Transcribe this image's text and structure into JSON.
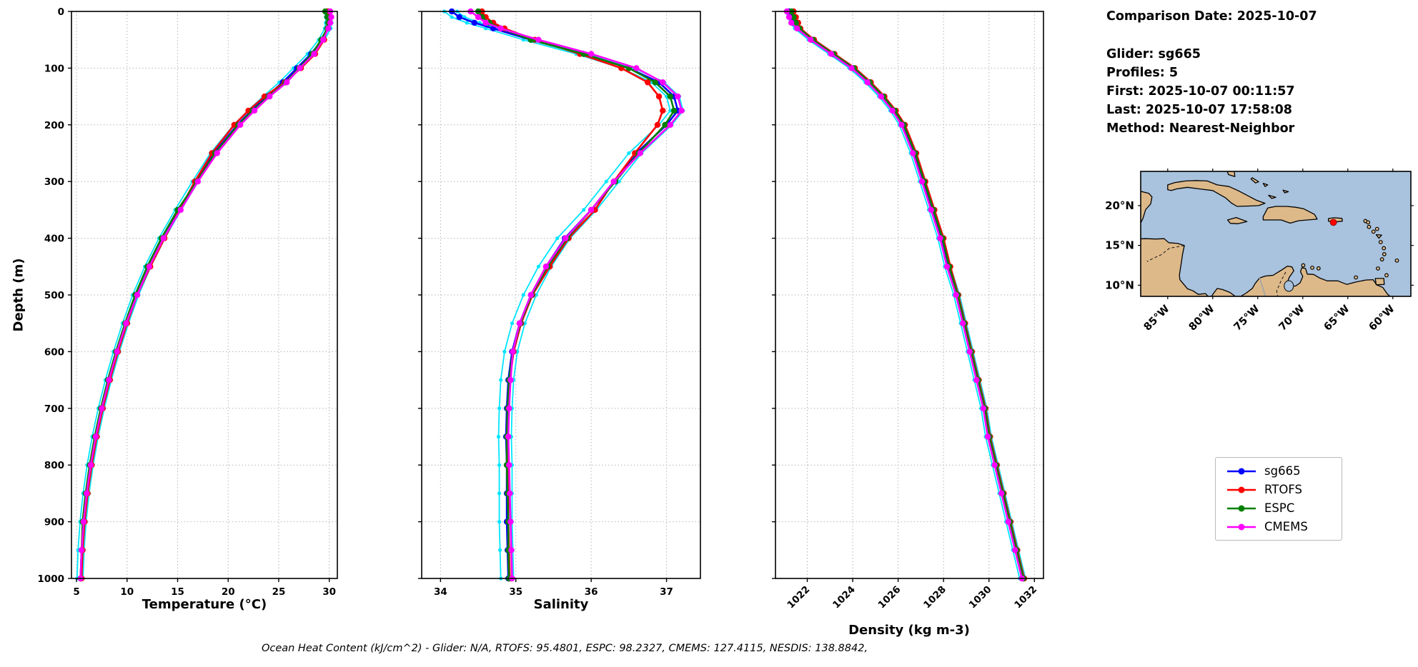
{
  "info_panel": {
    "comparison_date": "Comparison Date: 2025-10-07",
    "glider": "Glider: sg665",
    "profiles": "Profiles: 5",
    "first": "First: 2025-10-07 00:11:57",
    "last": "Last: 2025-10-07 17:58:08",
    "method": "Method: Nearest-Neighbor"
  },
  "footer": {
    "caption": "Ocean Heat Content (kJ/cm^2) - Glider: N/A,  RTOFS: 95.4801,  ESPC: 98.2327,  CMEMS: 127.4115,  NESDIS: 138.8842,"
  },
  "legend": {
    "entries": [
      {
        "label": "sg665",
        "color": "#0000ff"
      },
      {
        "label": "RTOFS",
        "color": "#ff0000"
      },
      {
        "label": "ESPC",
        "color": "#008000"
      },
      {
        "label": "CMEMS",
        "color": "#ff00ff"
      }
    ]
  },
  "style": {
    "individual_profile_color": "#00e5ff",
    "grid_color": "#b5b5b5",
    "axis_color": "#000000"
  },
  "map": {
    "extent": {
      "lon_min": -88,
      "lon_max": -58,
      "lat_min": 8.6,
      "lat_max": 24.3
    },
    "xticks": [
      -85,
      -80,
      -75,
      -70,
      -65,
      -60
    ],
    "xtick_labels": [
      "85°W",
      "80°W",
      "75°W",
      "70°W",
      "65°W",
      "60°W"
    ],
    "yticks": [
      20,
      15,
      10
    ],
    "ytick_labels": [
      "20°N",
      "15°N",
      "10°N"
    ],
    "ocean_color": "#a9c2dd",
    "land_color": "#ddb98a",
    "marker": {
      "lon": -66.6,
      "lat": 17.9,
      "color": "#ff0000"
    }
  },
  "chart_data": [
    {
      "type": "line",
      "name": "temperature-profile",
      "xlabel": "Temperature (°C)",
      "ylabel": "Depth (m)",
      "xlim": [
        4.5,
        30.8
      ],
      "ylim": [
        0,
        1000
      ],
      "xticks": [
        5,
        10,
        15,
        20,
        25,
        30
      ],
      "yticks": [
        0,
        100,
        200,
        300,
        400,
        500,
        600,
        700,
        800,
        900,
        1000
      ],
      "rotate_xtick_labels": false,
      "grid": "dotted",
      "profile_spread": 0.35,
      "depths": [
        0,
        10,
        20,
        30,
        50,
        75,
        100,
        125,
        150,
        175,
        200,
        250,
        300,
        350,
        400,
        450,
        500,
        550,
        600,
        650,
        700,
        750,
        800,
        850,
        900,
        950,
        1000
      ],
      "series": [
        {
          "name": "sg665",
          "color": "#0000ff",
          "values": [
            29.9,
            30.0,
            30.0,
            29.9,
            29.3,
            28.2,
            26.8,
            25.4,
            23.8,
            22.3,
            20.9,
            18.6,
            16.8,
            15.1,
            13.5,
            12.1,
            10.9,
            9.9,
            9.0,
            8.2,
            7.5,
            6.9,
            6.4,
            6.0,
            5.7,
            5.5,
            5.4
          ]
        },
        {
          "name": "RTOFS",
          "color": "#ff0000",
          "values": [
            29.8,
            29.9,
            29.9,
            29.8,
            29.5,
            28.6,
            27.2,
            25.6,
            23.6,
            22.0,
            20.6,
            18.4,
            16.7,
            15.2,
            13.7,
            12.3,
            11.0,
            10.0,
            9.1,
            8.3,
            7.6,
            7.0,
            6.5,
            6.1,
            5.8,
            5.6,
            5.5
          ]
        },
        {
          "name": "ESPC",
          "color": "#008000",
          "values": [
            29.6,
            29.8,
            29.9,
            29.8,
            29.2,
            28.3,
            27.0,
            25.7,
            24.0,
            22.4,
            21.0,
            18.7,
            16.9,
            15.0,
            13.4,
            12.0,
            10.8,
            9.8,
            8.9,
            8.1,
            7.4,
            6.8,
            6.3,
            5.9,
            5.6,
            5.5,
            5.4
          ]
        },
        {
          "name": "CMEMS",
          "color": "#ff00ff",
          "values": [
            30.1,
            30.2,
            30.1,
            29.9,
            29.4,
            28.5,
            27.1,
            25.8,
            24.1,
            22.6,
            21.2,
            18.9,
            17.0,
            15.3,
            13.6,
            12.2,
            11.0,
            9.9,
            9.0,
            8.2,
            7.5,
            6.9,
            6.4,
            6.0,
            5.7,
            5.5,
            5.4
          ]
        }
      ]
    },
    {
      "type": "line",
      "name": "salinity-profile",
      "xlabel": "Salinity",
      "ylabel": "",
      "xlim": [
        33.75,
        37.45
      ],
      "ylim": [
        0,
        1000
      ],
      "xticks": [
        34,
        35,
        36,
        37
      ],
      "yticks": [
        0,
        100,
        200,
        300,
        400,
        500,
        600,
        700,
        800,
        900,
        1000
      ],
      "rotate_xtick_labels": false,
      "grid": "dotted",
      "profile_spread": 0.1,
      "depths": [
        0,
        10,
        20,
        30,
        50,
        75,
        100,
        125,
        150,
        175,
        200,
        250,
        300,
        350,
        400,
        450,
        500,
        550,
        600,
        650,
        700,
        750,
        800,
        850,
        900,
        950,
        1000
      ],
      "series": [
        {
          "name": "sg665",
          "color": "#0000ff",
          "values": [
            34.15,
            34.25,
            34.45,
            34.7,
            35.2,
            35.9,
            36.5,
            36.9,
            37.1,
            37.15,
            37.0,
            36.6,
            36.3,
            36.0,
            35.65,
            35.4,
            35.2,
            35.05,
            34.95,
            34.9,
            34.88,
            34.87,
            34.88,
            34.88,
            34.88,
            34.89,
            34.9
          ]
        },
        {
          "name": "RTOFS",
          "color": "#ff0000",
          "values": [
            34.55,
            34.6,
            34.7,
            34.85,
            35.25,
            35.85,
            36.4,
            36.75,
            36.9,
            36.95,
            36.88,
            36.58,
            36.3,
            36.05,
            35.7,
            35.45,
            35.22,
            35.07,
            34.97,
            34.92,
            34.9,
            34.89,
            34.89,
            34.9,
            34.9,
            34.91,
            34.92
          ]
        },
        {
          "name": "ESPC",
          "color": "#008000",
          "values": [
            34.5,
            34.55,
            34.65,
            34.8,
            35.2,
            35.9,
            36.5,
            36.85,
            37.05,
            37.1,
            36.98,
            36.63,
            36.32,
            36.0,
            35.68,
            35.42,
            35.21,
            35.06,
            34.96,
            34.91,
            34.89,
            34.88,
            34.88,
            34.89,
            34.9,
            34.9,
            34.91
          ]
        },
        {
          "name": "CMEMS",
          "color": "#ff00ff",
          "values": [
            34.4,
            34.5,
            34.6,
            34.8,
            35.3,
            36.0,
            36.6,
            36.95,
            37.15,
            37.2,
            37.05,
            36.65,
            36.3,
            36.0,
            35.66,
            35.4,
            35.2,
            35.05,
            34.96,
            34.93,
            34.91,
            34.9,
            34.91,
            34.92,
            34.93,
            34.94,
            34.95
          ]
        }
      ]
    },
    {
      "type": "line",
      "name": "density-profile",
      "xlabel": "Density (kg m-3)",
      "ylabel": "",
      "xlim": [
        1020.6,
        1032.4
      ],
      "ylim": [
        0,
        1000
      ],
      "xticks": [
        1022,
        1024,
        1026,
        1028,
        1030,
        1032
      ],
      "yticks": [
        0,
        100,
        200,
        300,
        400,
        500,
        600,
        700,
        800,
        900,
        1000
      ],
      "rotate_xtick_labels": true,
      "grid": "dotted",
      "profile_spread": 0.15,
      "depths": [
        0,
        10,
        20,
        30,
        50,
        75,
        100,
        125,
        150,
        175,
        200,
        250,
        300,
        350,
        400,
        450,
        500,
        550,
        600,
        650,
        700,
        750,
        800,
        850,
        900,
        950,
        1000
      ],
      "series": [
        {
          "name": "sg665",
          "color": "#0000ff",
          "values": [
            1021.2,
            1021.3,
            1021.4,
            1021.6,
            1022.2,
            1023.1,
            1024.0,
            1024.7,
            1025.3,
            1025.8,
            1026.2,
            1026.7,
            1027.1,
            1027.5,
            1027.9,
            1028.2,
            1028.6,
            1028.9,
            1029.2,
            1029.5,
            1029.8,
            1030.0,
            1030.3,
            1030.6,
            1030.9,
            1031.2,
            1031.5
          ]
        },
        {
          "name": "RTOFS",
          "color": "#ff0000",
          "values": [
            1021.4,
            1021.5,
            1021.6,
            1021.7,
            1022.3,
            1023.2,
            1024.1,
            1024.8,
            1025.4,
            1025.9,
            1026.3,
            1026.8,
            1027.2,
            1027.6,
            1028.0,
            1028.3,
            1028.65,
            1028.95,
            1029.25,
            1029.55,
            1029.85,
            1030.05,
            1030.35,
            1030.65,
            1030.95,
            1031.25,
            1031.55
          ]
        },
        {
          "name": "ESPC",
          "color": "#008000",
          "values": [
            1021.3,
            1021.4,
            1021.5,
            1021.65,
            1022.25,
            1023.15,
            1024.05,
            1024.75,
            1025.35,
            1025.85,
            1026.25,
            1026.75,
            1027.15,
            1027.55,
            1027.95,
            1028.25,
            1028.62,
            1028.92,
            1029.22,
            1029.52,
            1029.82,
            1030.02,
            1030.32,
            1030.62,
            1030.92,
            1031.22,
            1031.52
          ]
        },
        {
          "name": "CMEMS",
          "color": "#ff00ff",
          "values": [
            1021.1,
            1021.2,
            1021.3,
            1021.55,
            1022.15,
            1023.05,
            1023.95,
            1024.65,
            1025.25,
            1025.75,
            1026.15,
            1026.65,
            1027.05,
            1027.45,
            1027.85,
            1028.15,
            1028.55,
            1028.85,
            1029.15,
            1029.45,
            1029.75,
            1029.95,
            1030.25,
            1030.55,
            1030.85,
            1031.15,
            1031.45
          ]
        }
      ]
    }
  ]
}
